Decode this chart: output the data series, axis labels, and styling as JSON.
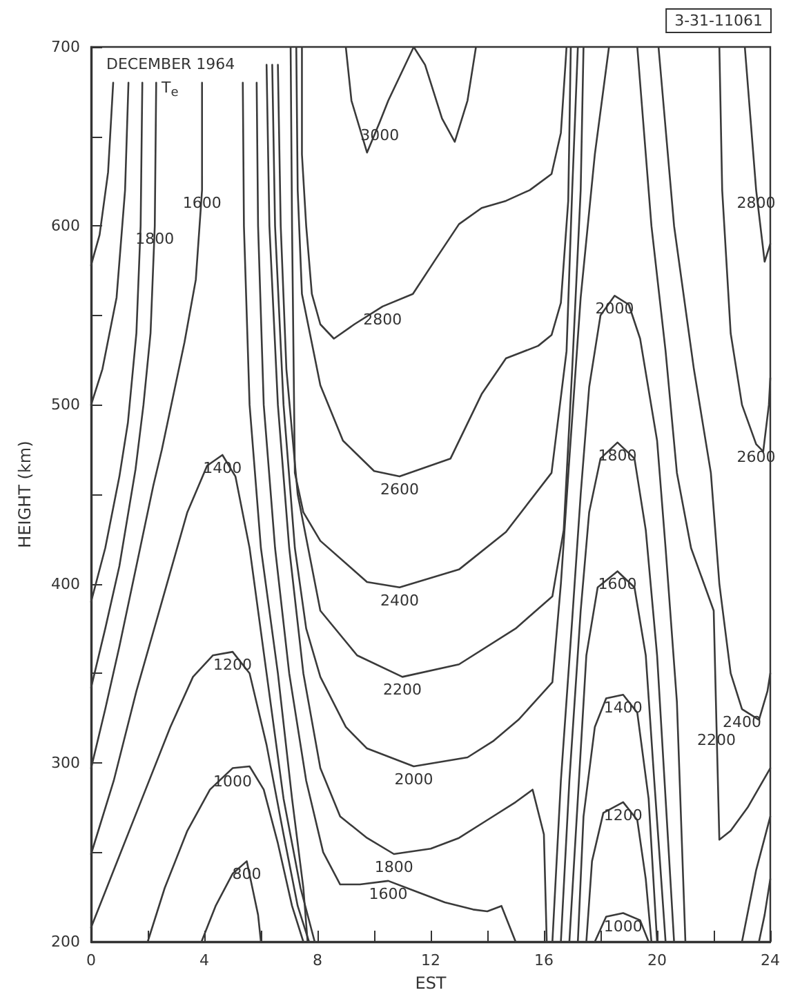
{
  "chart_data": {
    "type": "line",
    "title": "DECEMBER 1964",
    "subtitle": "T$_{e}$",
    "xlabel": "EST",
    "ylabel": "HEIGHT (km)",
    "xlim": [
      0,
      24
    ],
    "ylim": [
      200,
      700
    ],
    "xticks": [
      0,
      {
        "value": 2,
        "label": null
      },
      4,
      {
        "value": 6,
        "label": null
      },
      8,
      {
        "value": 10,
        "label": null
      },
      12,
      {
        "value": 14,
        "label": null
      },
      16,
      {
        "value": 18,
        "label": null
      },
      20,
      {
        "value": 22,
        "label": null
      },
      24
    ],
    "yticks": [
      200,
      {
        "value": 250,
        "label": null
      },
      300,
      {
        "value": 350,
        "label": null
      },
      400,
      {
        "value": 450,
        "label": null
      },
      500,
      {
        "value": 550,
        "label": null
      },
      600,
      {
        "value": 650,
        "label": null
      },
      700
    ],
    "marker": "none",
    "line_style": "solid",
    "series": [
      {
        "color": "#3a3a3a",
        "x": [
          0.78,
          0.6,
          0.3,
          0
        ],
        "values": [
          680,
          630,
          595,
          578
        ]
      },
      {
        "color": "#3a3a3a",
        "x": [
          1.32,
          1.2,
          0.9,
          0.4,
          0
        ],
        "values": [
          680,
          620,
          560,
          520,
          500
        ]
      },
      {
        "color": "#3a3a3a",
        "x": [
          1.81,
          1.75,
          1.6,
          1.3,
          1.0,
          0.5,
          0
        ],
        "values": [
          680,
          600,
          540,
          490,
          460,
          420,
          390
        ]
      },
      {
        "color": "#3a3a3a",
        "x": [
          2.3,
          2.25,
          2.1,
          1.85,
          1.57,
          1.0,
          0.5,
          0
        ],
        "values": [
          680,
          600,
          540,
          500,
          464,
          410,
          375,
          342
        ]
      },
      {
        "color": "#3a3a3a",
        "x": [
          3.92,
          3.92,
          3.7,
          3.3,
          2.9,
          2.5,
          2.2,
          1.6,
          1.0,
          0.5,
          0
        ],
        "values": [
          680,
          620,
          570,
          535,
          505,
          475,
          455,
          410,
          365,
          330,
          297
        ]
      },
      {
        "color": "#3a3a3a",
        "x": [
          0,
          0.8,
          1.6,
          2.5,
          3.4,
          4.1,
          4.64,
          5.1,
          5.6,
          6.2,
          6.8,
          7.4,
          7.9
        ],
        "values": [
          249,
          290,
          340,
          390,
          440,
          466,
          472,
          460,
          420,
          350,
          280,
          230,
          200
        ]
      },
      {
        "color": "#3a3a3a",
        "x": [
          0,
          0.8,
          1.8,
          2.8,
          3.6,
          4.3,
          5.0,
          5.6,
          6.2,
          6.8,
          7.3,
          7.7
        ],
        "values": [
          208,
          240,
          280,
          320,
          348,
          360,
          362,
          350,
          310,
          260,
          220,
          200
        ]
      },
      {
        "color": "#3a3a3a",
        "x": [
          2.0,
          2.6,
          3.4,
          4.2,
          5.0,
          5.6,
          6.1,
          6.6,
          7.1,
          7.5
        ],
        "values": [
          200,
          230,
          262,
          285,
          297,
          298,
          285,
          255,
          220,
          200
        ]
      },
      {
        "color": "#3a3a3a",
        "x": [
          3.9,
          4.4,
          5.0,
          5.5,
          5.7,
          5.9,
          6.0
        ],
        "values": [
          200,
          220,
          238,
          245,
          230,
          215,
          200
        ]
      },
      {
        "color": "#3a3a3a",
        "x": [
          5.36,
          5.4,
          5.6,
          6.0,
          6.6,
          7.1,
          7.5,
          7.65
        ],
        "values": [
          680,
          600,
          500,
          420,
          350,
          280,
          230,
          200
        ]
      },
      {
        "color": "#3a3a3a",
        "x": [
          5.85,
          5.9,
          6.1,
          6.5,
          7.0,
          7.6,
          8.2,
          8.8,
          9.5,
          10.5,
          11.5,
          12.5,
          13.5,
          14.0,
          14.5,
          15.0
        ],
        "values": [
          680,
          600,
          500,
          420,
          350,
          290,
          250,
          232,
          232,
          234,
          228,
          222,
          218,
          217,
          220,
          200
        ]
      },
      {
        "color": "#3a3a3a",
        "x": [
          6.2,
          6.3,
          6.6,
          7.0,
          7.5,
          8.1,
          8.8,
          9.75,
          10.7,
          12.0,
          13.0,
          14.0,
          15.0,
          15.6,
          16.0,
          16.1
        ],
        "values": [
          690,
          600,
          500,
          420,
          350,
          297,
          270,
          258,
          249,
          252,
          258,
          268,
          278,
          285,
          260,
          200
        ]
      },
      {
        "color": "#3a3a3a",
        "x": [
          6.4,
          6.5,
          6.8,
          7.2,
          7.6,
          8.1,
          9.0,
          9.75,
          11.4,
          13.3,
          14.2,
          15.1,
          16.3,
          16.6,
          16.9,
          17.3,
          17.8,
          18.3
        ],
        "values": [
          690,
          600,
          500,
          420,
          375,
          348,
          320,
          308,
          298,
          303,
          312,
          324,
          345,
          400,
          470,
          560,
          640,
          700
        ]
      },
      {
        "color": "#3a3a3a",
        "x": [
          6.6,
          6.7,
          6.9,
          7.3,
          8.1,
          9.4,
          11.0,
          13.0,
          15.0,
          16.3,
          16.7,
          17.0,
          17.3,
          17.4
        ],
        "values": [
          690,
          600,
          520,
          450,
          385,
          360,
          348,
          355,
          375,
          393,
          430,
          520,
          620,
          700
        ]
      },
      {
        "color": "#3a3a3a",
        "x": [
          7.05,
          7.1,
          7.2,
          7.5,
          8.1,
          9.75,
          10.9,
          13.0,
          14.66,
          16.27,
          16.8,
          17.0,
          17.2
        ],
        "values": [
          700,
          600,
          462,
          440,
          424,
          401,
          398,
          408,
          429,
          462,
          530,
          620,
          700
        ]
      },
      {
        "color": "#3a3a3a",
        "x": [
          7.25,
          7.3,
          7.45,
          8.1,
          8.9,
          10.0,
          10.9,
          12.7,
          13.8,
          14.66,
          15.8,
          16.27,
          16.6,
          16.86,
          16.95
        ],
        "values": [
          700,
          620,
          562,
          511,
          480,
          463,
          460,
          470,
          506,
          526,
          533,
          539,
          557,
          614,
          700
        ]
      },
      {
        "color": "#3a3a3a",
        "x": [
          7.45,
          7.45,
          7.6,
          7.8,
          8.1,
          8.58,
          9.3,
          10.3,
          11.37,
          12.2,
          13.0,
          13.8,
          14.66,
          15.5,
          16.27,
          16.6,
          16.76,
          16.8
        ],
        "values": [
          700,
          640,
          600,
          562,
          545,
          537,
          545,
          555,
          562,
          582,
          601,
          610,
          614,
          620,
          629,
          652,
          690,
          700
        ]
      },
      {
        "color": "#3a3a3a",
        "x": [
          9.0,
          9.2,
          9.75,
          10.2,
          10.5,
          11.4,
          11.8,
          12.4,
          12.85,
          13.3,
          13.6
        ],
        "values": [
          700,
          670,
          641,
          658,
          670,
          700,
          690,
          660,
          647,
          670,
          700
        ]
      },
      {
        "color": "#3a3a3a",
        "x": [
          16.3,
          16.6,
          17.0,
          17.3,
          17.6,
          18.0,
          18.5,
          19.0,
          19.4,
          20.0,
          20.3,
          20.7,
          21.0
        ],
        "values": [
          200,
          290,
          380,
          450,
          510,
          550,
          561,
          556,
          537,
          480,
          420,
          334,
          200
        ]
      },
      {
        "color": "#3a3a3a",
        "x": [
          16.6,
          16.9,
          17.3,
          17.6,
          18.0,
          18.6,
          19.2,
          19.6,
          20.0,
          20.3,
          20.6
        ],
        "values": [
          200,
          290,
          385,
          440,
          470,
          479,
          470,
          430,
          360,
          280,
          200
        ]
      },
      {
        "color": "#3a3a3a",
        "x": [
          16.9,
          17.2,
          17.5,
          17.9,
          18.6,
          19.2,
          19.6,
          19.9,
          20.3
        ],
        "values": [
          200,
          280,
          360,
          398,
          407,
          398,
          360,
          290,
          200
        ]
      },
      {
        "color": "#3a3a3a",
        "x": [
          17.2,
          17.4,
          17.8,
          18.2,
          18.8,
          19.3,
          19.7,
          20.0
        ],
        "values": [
          200,
          270,
          320,
          336,
          338,
          328,
          280,
          200
        ]
      },
      {
        "color": "#3a3a3a",
        "x": [
          17.5,
          17.7,
          18.1,
          18.8,
          19.3,
          19.6,
          19.8
        ],
        "values": [
          200,
          245,
          272,
          278,
          268,
          235,
          200
        ]
      },
      {
        "color": "#3a3a3a",
        "x": [
          17.8,
          18.2,
          18.8,
          19.4,
          19.7
        ],
        "values": [
          200,
          214,
          216,
          212,
          200
        ]
      },
      {
        "color": "#3a3a3a",
        "x": [
          19.3,
          19.8,
          20.3,
          20.7,
          21.2,
          22.0,
          22.1,
          22.2,
          22.6,
          23.2,
          24
        ],
        "values": [
          700,
          600,
          530,
          462,
          420,
          385,
          320,
          257,
          262,
          275,
          297
        ]
      },
      {
        "color": "#3a3a3a",
        "x": [
          20.05,
          20.6,
          21.3,
          21.9,
          22.2,
          22.6,
          23.0,
          23.6,
          23.9,
          24
        ],
        "values": [
          700,
          600,
          520,
          462,
          400,
          350,
          330,
          324,
          340,
          350
        ]
      },
      {
        "color": "#3a3a3a",
        "x": [
          22.2,
          22.3,
          22.6,
          23.0,
          23.5,
          23.75,
          23.95,
          24
        ],
        "values": [
          700,
          620,
          540,
          500,
          478,
          474,
          500,
          515
        ]
      },
      {
        "color": "#3a3a3a",
        "x": [
          23.1,
          23.3,
          23.5,
          23.8,
          24
        ],
        "values": [
          700,
          660,
          620,
          580,
          590
        ]
      },
      {
        "color": "#3a3a3a",
        "x": [
          24,
          23.5,
          23.0
        ],
        "values": [
          270,
          240,
          200
        ]
      },
      {
        "color": "#3a3a3a",
        "x": [
          24,
          23.8,
          23.6
        ],
        "values": [
          235,
          215,
          200
        ]
      }
    ],
    "annotations": [
      "3-31-11061",
      {
        "text": "3000",
        "x": 10.2,
        "y": 658
      },
      {
        "text": "2800",
        "x": 10.3,
        "y": 555
      },
      {
        "text": "2600",
        "x": 10.9,
        "y": 460
      },
      {
        "text": "2400",
        "x": 10.9,
        "y": 398
      },
      {
        "text": "2200",
        "x": 11.0,
        "y": 348
      },
      {
        "text": "2000",
        "x": 11.4,
        "y": 298
      },
      {
        "text": "1800",
        "x": 10.7,
        "y": 249
      },
      {
        "text": "1600",
        "x": 10.5,
        "y": 234
      },
      {
        "text": "2000",
        "x": 18.5,
        "y": 561
      },
      {
        "text": "1800",
        "x": 18.6,
        "y": 479
      },
      {
        "text": "1600",
        "x": 18.6,
        "y": 407
      },
      {
        "text": "1400",
        "x": 18.8,
        "y": 338
      },
      {
        "text": "1200",
        "x": 18.8,
        "y": 278
      },
      {
        "text": "1000",
        "x": 18.8,
        "y": 216
      },
      {
        "text": "2800",
        "x": 23.5,
        "y": 620
      },
      {
        "text": "2600",
        "x": 23.5,
        "y": 478
      },
      {
        "text": "2400",
        "x": 23.0,
        "y": 330
      },
      {
        "text": "2200",
        "x": 22.1,
        "y": 320
      },
      {
        "text": "1600",
        "x": 3.92,
        "y": 620
      },
      {
        "text": "1800",
        "x": 2.25,
        "y": 600
      },
      {
        "text": "1400",
        "x": 4.64,
        "y": 472
      },
      {
        "text": "1200",
        "x": 5.0,
        "y": 362
      },
      {
        "text": "1000",
        "x": 5.0,
        "y": 297
      },
      {
        "text": "800",
        "x": 5.5,
        "y": 245
      }
    ]
  }
}
